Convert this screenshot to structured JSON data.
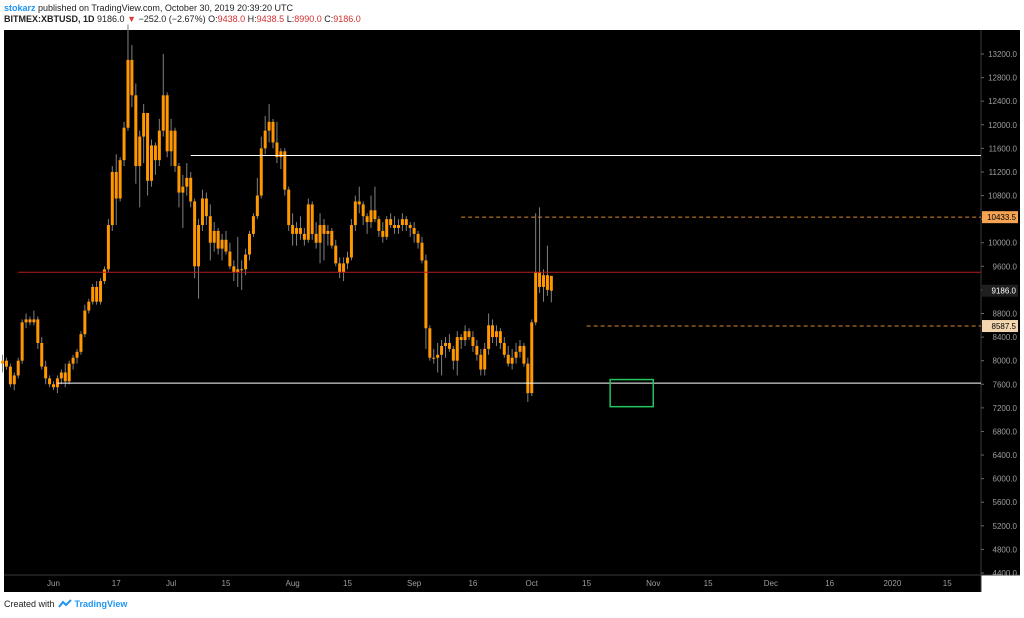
{
  "header": {
    "author": "stokarz",
    "published_text": " published on TradingView.com, October 30, 2019 20:39:20 UTC",
    "symbol_interval": "BITMEX:XBTUSD, 1D",
    "last": "9186.0",
    "down_arrow": "▼",
    "change": "−252.0 (−2.67%)",
    "o_label": "O:",
    "o_value": "9438.0",
    "h_label": "H:",
    "h_value": "9438.5",
    "l_label": "L:",
    "l_value": "8990.0",
    "c_label": "C:",
    "c_value": "9186.0"
  },
  "footer": {
    "created_with": "Created with",
    "brand": "TradingView",
    "logo_icon": "tradingview-logo-icon"
  },
  "colors": {
    "background": "#000000",
    "candle": "#ff9800",
    "wick": "#808080",
    "support_resistance": "#ffffff",
    "key_level": "#b71c1c",
    "dashed_level": "#e08a2c",
    "highlight_box": "#22c55e"
  },
  "chart_data": {
    "type": "candlestick",
    "title": "BITMEX:XBTUSD, 1D",
    "ylim": [
      4400,
      13700
    ],
    "y_ticks": [
      13200,
      12800,
      12400,
      12000,
      11600,
      11200,
      10800,
      10400,
      10000,
      9600,
      9200,
      8800,
      8400,
      8000,
      7600,
      7200,
      6800,
      6400,
      6000,
      5600,
      5200,
      4800,
      4400
    ],
    "y_tick_labels": [
      "13200.0",
      "12800.0",
      "12400.0",
      "12000.0",
      "11600.0",
      "11200.0",
      "10800.0",
      "10400.0",
      "10000.0",
      "9600.0",
      "9200.0",
      "8800.0",
      "8400.0",
      "8000.0",
      "7600.0",
      "7200.0",
      "6800.0",
      "6400.0",
      "6000.0",
      "5600.0",
      "5200.0",
      "4800.0",
      "4400.0"
    ],
    "x_tick_labels": [
      "Jun",
      "17",
      "Jul",
      "15",
      "Aug",
      "15",
      "Sep",
      "16",
      "Oct",
      "15",
      "Nov",
      "15",
      "Dec",
      "16",
      "2020",
      "15"
    ],
    "x_tick_days": [
      0,
      16,
      30,
      44,
      61,
      75,
      92,
      107,
      122,
      136,
      153,
      167,
      183,
      198,
      214,
      228
    ],
    "price_badges": [
      {
        "label": "10433.5",
        "value": 10433.5,
        "style": "orange-fill"
      },
      {
        "label": "9186.0",
        "value": 9186.0,
        "style": "white-on-dark"
      },
      {
        "label": "8587.5",
        "value": 8587.5,
        "style": "light"
      }
    ],
    "horizontal_lines": [
      {
        "value": 11480,
        "style": "white-solid",
        "from_day": 35
      },
      {
        "value": 9500,
        "style": "dark-red-solid",
        "from_day": -9
      },
      {
        "value": 7620,
        "style": "white-solid",
        "from_day": 1
      },
      {
        "value": 10433.5,
        "style": "orange-dashed",
        "from_day": 104
      },
      {
        "value": 8587.5,
        "style": "orange-dashed",
        "from_day": 136
      }
    ],
    "highlight_box": {
      "day_from": 142,
      "day_to": 153,
      "low": 7220,
      "high": 7680
    },
    "candles": {
      "start_day": -13,
      "ohlc": [
        [
          7950,
          8100,
          7800,
          8000
        ],
        [
          8000,
          8050,
          7850,
          7900
        ],
        [
          7900,
          7950,
          7550,
          7600
        ],
        [
          7600,
          7800,
          7500,
          7750
        ],
        [
          7750,
          8050,
          7700,
          8000
        ],
        [
          8000,
          8700,
          7950,
          8650
        ],
        [
          8650,
          8800,
          8550,
          8700
        ],
        [
          8700,
          8750,
          8600,
          8650
        ],
        [
          8650,
          8850,
          8600,
          8700
        ],
        [
          8700,
          8750,
          8200,
          8300
        ],
        [
          8300,
          8400,
          7850,
          7900
        ],
        [
          7900,
          8000,
          7600,
          7700
        ],
        [
          7700,
          7750,
          7550,
          7600
        ],
        [
          7600,
          7650,
          7500,
          7550
        ],
        [
          7550,
          7750,
          7450,
          7700
        ],
        [
          7700,
          7850,
          7600,
          7800
        ],
        [
          7800,
          7950,
          7550,
          7650
        ],
        [
          7650,
          8000,
          7600,
          7950
        ],
        [
          7950,
          8100,
          7850,
          8050
        ],
        [
          8050,
          8200,
          7950,
          8150
        ],
        [
          8150,
          8500,
          8100,
          8450
        ],
        [
          8450,
          8950,
          8400,
          8850
        ],
        [
          8850,
          9050,
          8800,
          9000
        ],
        [
          9000,
          9300,
          8950,
          9250
        ],
        [
          9250,
          9350,
          8950,
          9000
        ],
        [
          9000,
          9400,
          8950,
          9350
        ],
        [
          9350,
          9600,
          9300,
          9550
        ],
        [
          9550,
          10400,
          9500,
          10300
        ],
        [
          10300,
          11300,
          10200,
          11200
        ],
        [
          11200,
          11500,
          10300,
          10750
        ],
        [
          10750,
          11450,
          10700,
          11400
        ],
        [
          11400,
          12050,
          11300,
          11950
        ],
        [
          11950,
          13700,
          11900,
          13100
        ],
        [
          13100,
          13350,
          12300,
          12500
        ],
        [
          12500,
          12700,
          11000,
          11300
        ],
        [
          11300,
          11900,
          10600,
          11800
        ],
        [
          11800,
          12350,
          11350,
          12200
        ],
        [
          12200,
          12200,
          10800,
          11050
        ],
        [
          11050,
          11750,
          10950,
          11650
        ],
        [
          11650,
          11700,
          11150,
          11400
        ],
        [
          11400,
          12100,
          11300,
          11900
        ],
        [
          11900,
          13200,
          11800,
          12500
        ],
        [
          12500,
          12550,
          11450,
          11550
        ],
        [
          11550,
          12100,
          11300,
          11900
        ],
        [
          11900,
          11950,
          11200,
          11300
        ],
        [
          11300,
          11350,
          10600,
          10850
        ],
        [
          10850,
          11150,
          10250,
          10950
        ],
        [
          10950,
          11350,
          10800,
          11100
        ],
        [
          11100,
          11200,
          10600,
          10700
        ],
        [
          10700,
          10750,
          9400,
          9600
        ],
        [
          9600,
          10400,
          9050,
          10300
        ],
        [
          10300,
          10900,
          10200,
          10750
        ],
        [
          10750,
          10850,
          10300,
          10450
        ],
        [
          10450,
          10650,
          9700,
          10000
        ],
        [
          10000,
          10350,
          9850,
          10200
        ],
        [
          10200,
          10250,
          9800,
          9900
        ],
        [
          9900,
          10150,
          9700,
          10050
        ],
        [
          10050,
          10200,
          9800,
          9850
        ],
        [
          9850,
          10000,
          9550,
          9600
        ],
        [
          9600,
          9700,
          9350,
          9500
        ],
        [
          9500,
          10100,
          9250,
          9550
        ],
        [
          9550,
          9700,
          9200,
          9550
        ],
        [
          9550,
          9900,
          9450,
          9800
        ],
        [
          9800,
          10200,
          9700,
          10150
        ],
        [
          10150,
          10500,
          10100,
          10450
        ],
        [
          10450,
          11100,
          10400,
          10800
        ],
        [
          10800,
          11800,
          10750,
          11600
        ],
        [
          11600,
          12150,
          11500,
          11900
        ],
        [
          11900,
          12350,
          11700,
          12050
        ],
        [
          12050,
          12100,
          11600,
          11700
        ],
        [
          11700,
          12050,
          11350,
          11450
        ],
        [
          11450,
          11600,
          11250,
          11550
        ],
        [
          11550,
          11600,
          10800,
          10900
        ],
        [
          10900,
          10950,
          10200,
          10300
        ],
        [
          10300,
          10500,
          9950,
          10150
        ],
        [
          10150,
          10350,
          9950,
          10250
        ],
        [
          10250,
          10450,
          10050,
          10150
        ],
        [
          10150,
          10250,
          9950,
          10050
        ],
        [
          10050,
          10750,
          10000,
          10650
        ],
        [
          10650,
          10700,
          10050,
          10150
        ],
        [
          10150,
          10350,
          9900,
          10000
        ],
        [
          10000,
          10500,
          9650,
          10300
        ],
        [
          10300,
          10400,
          9700,
          10150
        ],
        [
          10150,
          10300,
          9950,
          10200
        ],
        [
          10200,
          10250,
          9900,
          9950
        ],
        [
          9950,
          10050,
          9600,
          9650
        ],
        [
          9650,
          9750,
          9400,
          9500
        ],
        [
          9500,
          9750,
          9350,
          9650
        ],
        [
          9650,
          9850,
          9550,
          9750
        ],
        [
          9750,
          10400,
          9700,
          10300
        ],
        [
          10300,
          10800,
          10200,
          10700
        ],
        [
          10700,
          10950,
          10500,
          10650
        ],
        [
          10650,
          10700,
          10300,
          10450
        ],
        [
          10450,
          10500,
          10150,
          10350
        ],
        [
          10350,
          10800,
          10250,
          10550
        ],
        [
          10550,
          10950,
          10350,
          10400
        ],
        [
          10400,
          10450,
          10100,
          10200
        ],
        [
          10200,
          10350,
          10000,
          10100
        ],
        [
          10100,
          10450,
          10050,
          10400
        ],
        [
          10400,
          10500,
          10250,
          10300
        ],
        [
          10300,
          10450,
          10150,
          10250
        ],
        [
          10250,
          10400,
          10150,
          10300
        ],
        [
          10300,
          10500,
          10200,
          10400
        ],
        [
          10400,
          10450,
          10200,
          10300
        ],
        [
          10300,
          10350,
          10100,
          10250
        ],
        [
          10250,
          10350,
          10000,
          10150
        ],
        [
          10150,
          10200,
          9900,
          10000
        ],
        [
          10000,
          10100,
          9650,
          9700
        ],
        [
          9700,
          9800,
          8200,
          8550
        ],
        [
          8550,
          8600,
          8000,
          8050
        ],
        [
          8050,
          8200,
          7950,
          8050
        ],
        [
          8050,
          8300,
          7800,
          8100
        ],
        [
          8100,
          8350,
          7750,
          8250
        ],
        [
          8250,
          8400,
          8050,
          8300
        ],
        [
          8300,
          8450,
          8150,
          8200
        ],
        [
          8200,
          8250,
          7850,
          8000
        ],
        [
          8000,
          8500,
          7750,
          8400
        ],
        [
          8400,
          8450,
          8200,
          8350
        ],
        [
          8350,
          8600,
          8250,
          8500
        ],
        [
          8500,
          8550,
          8350,
          8400
        ],
        [
          8400,
          8500,
          8150,
          8250
        ],
        [
          8250,
          8350,
          8000,
          8100
        ],
        [
          8100,
          8200,
          7750,
          7850
        ],
        [
          7850,
          8300,
          7750,
          8200
        ],
        [
          8200,
          8800,
          8100,
          8600
        ],
        [
          8600,
          8700,
          8300,
          8400
        ],
        [
          8400,
          8600,
          8250,
          8500
        ],
        [
          8500,
          8550,
          8200,
          8300
        ],
        [
          8300,
          8400,
          8050,
          8100
        ],
        [
          8100,
          8250,
          7900,
          7950
        ],
        [
          7950,
          8200,
          7850,
          8050
        ],
        [
          8050,
          8300,
          7950,
          8150
        ],
        [
          8150,
          8350,
          8050,
          8250
        ],
        [
          8250,
          8300,
          7900,
          7950
        ],
        [
          7950,
          8050,
          7300,
          7450
        ],
        [
          7450,
          8700,
          7400,
          8650
        ],
        [
          8650,
          10500,
          8600,
          9500
        ],
        [
          9500,
          10600,
          9150,
          9250
        ],
        [
          9250,
          9550,
          9000,
          9450
        ],
        [
          9450,
          9950,
          9100,
          9200
        ],
        [
          9438,
          9438.5,
          8990,
          9186
        ]
      ]
    }
  }
}
